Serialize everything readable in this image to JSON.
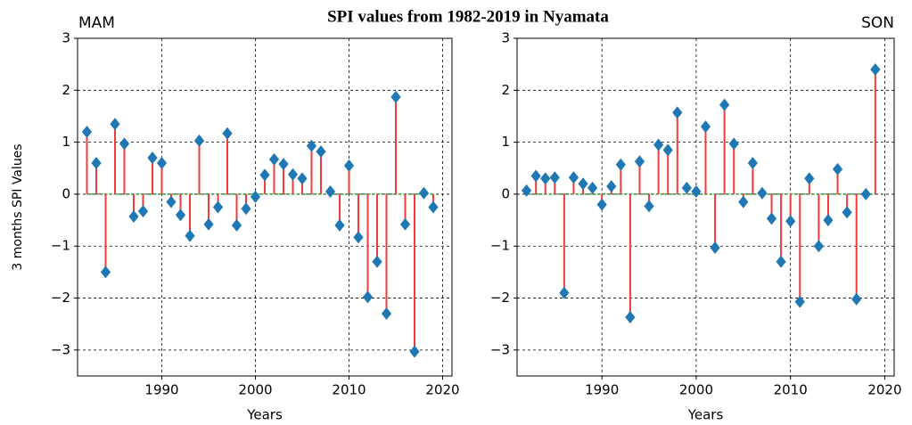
{
  "title": "SPI values from 1982-2019 in Nyamata",
  "chart_data": [
    {
      "type": "stem",
      "subtitle": "MAM",
      "subtitle_side": "left",
      "xlabel": "Years",
      "ylabel": "3 months SPI Values",
      "x": [
        1982,
        1983,
        1984,
        1985,
        1986,
        1987,
        1988,
        1989,
        1990,
        1991,
        1992,
        1993,
        1994,
        1995,
        1996,
        1997,
        1998,
        1999,
        2000,
        2001,
        2002,
        2003,
        2004,
        2005,
        2006,
        2007,
        2008,
        2009,
        2010,
        2011,
        2012,
        2013,
        2014,
        2015,
        2016,
        2017,
        2018,
        2019
      ],
      "values": [
        1.2,
        0.6,
        -1.5,
        1.35,
        0.97,
        -0.43,
        -0.33,
        0.7,
        0.6,
        -0.15,
        -0.4,
        -0.8,
        1.03,
        -0.58,
        -0.25,
        1.17,
        -0.6,
        -0.28,
        -0.05,
        0.37,
        0.67,
        0.58,
        0.38,
        0.3,
        0.93,
        0.82,
        0.05,
        -0.6,
        0.55,
        -0.83,
        -1.98,
        -1.3,
        -2.3,
        1.87,
        -0.58,
        -3.03,
        0.02,
        -0.25
      ],
      "stem_color": "#f03c3c",
      "marker_color": "#1f77b4",
      "baseline_color": "#2ca02c",
      "xlim": [
        1981,
        2021
      ],
      "xticks": [
        1990,
        2000,
        2010,
        2020
      ],
      "ylim": [
        -3.5,
        3
      ],
      "yticks": [
        {
          "value": -3,
          "label": "−3"
        },
        {
          "value": -2,
          "label": "−2"
        },
        {
          "value": -1,
          "label": "−1"
        },
        0,
        1,
        2,
        3
      ],
      "grid": true
    },
    {
      "type": "stem",
      "subtitle": "SON",
      "subtitle_side": "right",
      "xlabel": "Years",
      "x": [
        1982,
        1983,
        1984,
        1985,
        1986,
        1987,
        1988,
        1989,
        1990,
        1991,
        1992,
        1993,
        1994,
        1995,
        1996,
        1997,
        1998,
        1999,
        2000,
        2001,
        2002,
        2003,
        2004,
        2005,
        2006,
        2007,
        2008,
        2009,
        2010,
        2011,
        2012,
        2013,
        2014,
        2015,
        2016,
        2017,
        2018,
        2019
      ],
      "values": [
        0.07,
        0.35,
        0.3,
        0.32,
        -1.9,
        0.32,
        0.2,
        0.12,
        -0.2,
        0.15,
        0.57,
        -2.37,
        0.63,
        -0.23,
        0.95,
        0.85,
        1.57,
        0.12,
        0.05,
        1.3,
        -1.03,
        1.72,
        0.97,
        -0.15,
        0.6,
        0.02,
        -0.47,
        -1.3,
        -0.52,
        -2.07,
        0.3,
        -1.0,
        -0.5,
        0.48,
        -0.35,
        -2.02,
        0.0,
        2.4
      ],
      "stem_color": "#f03c3c",
      "marker_color": "#1f77b4",
      "baseline_color": "#2ca02c",
      "xlim": [
        1981,
        2021
      ],
      "xticks": [
        1990,
        2000,
        2010,
        2020
      ],
      "ylim": [
        -3.5,
        3
      ],
      "yticks": [
        {
          "value": -3,
          "label": "−3"
        },
        {
          "value": -2,
          "label": "−2"
        },
        {
          "value": -1,
          "label": "−1"
        },
        0,
        1,
        2,
        3
      ],
      "grid": true
    }
  ]
}
